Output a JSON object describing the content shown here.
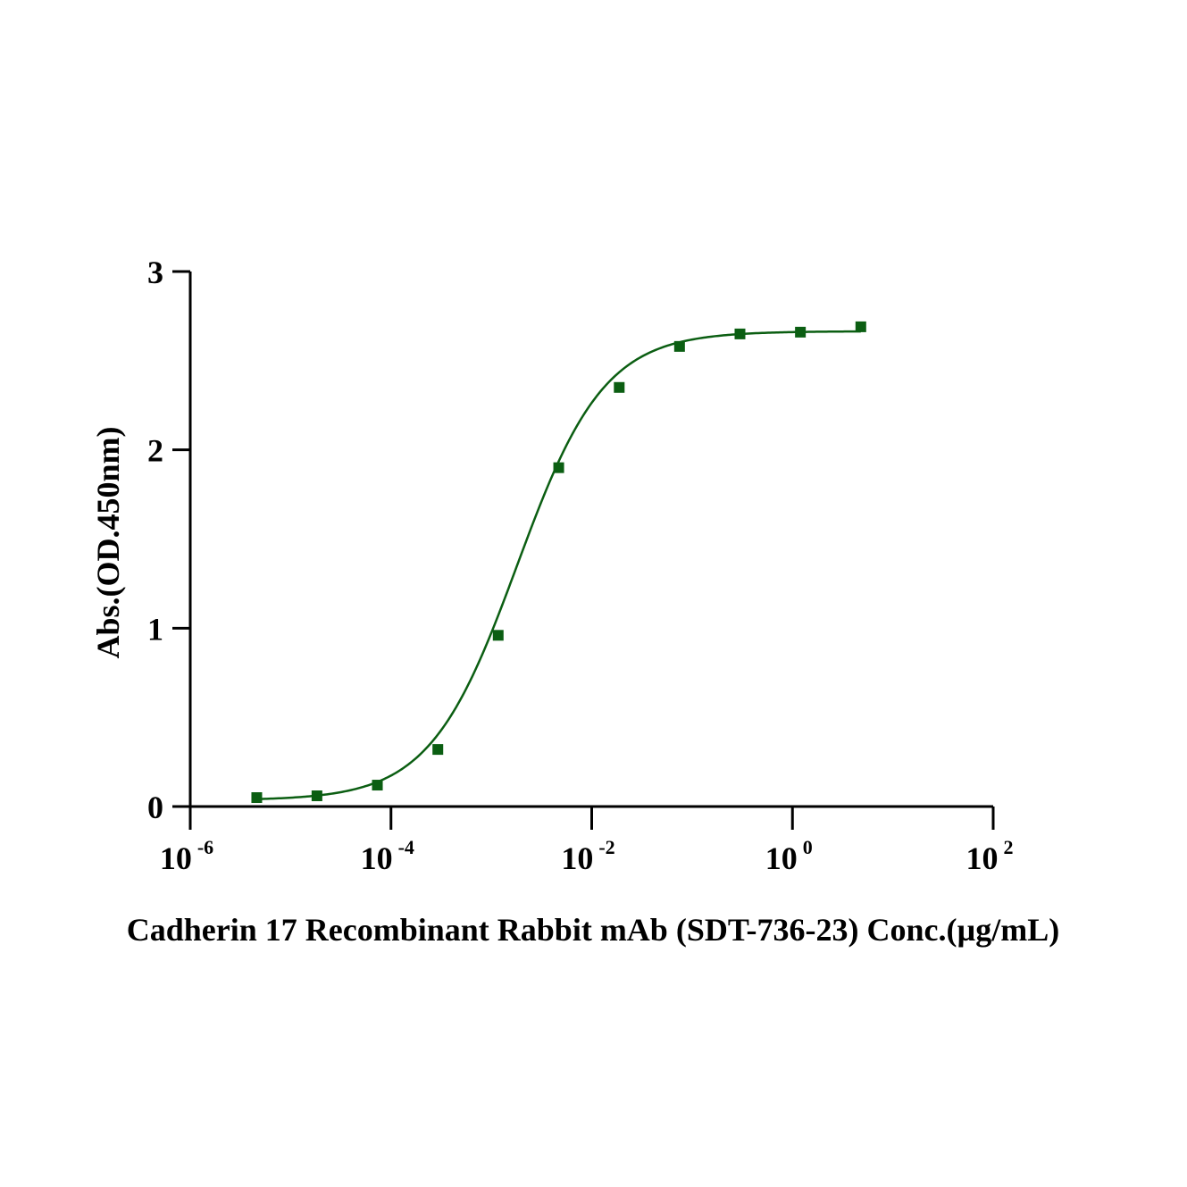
{
  "chart_data": {
    "type": "scatter",
    "xscale": "log",
    "xlabel": "Cadherin 17 Recombinant Rabbit mAb (SDT-736-23)  Conc.(µg/mL)",
    "ylabel": "Abs.(OD.450nm)",
    "xlim": [
      1e-06,
      100
    ],
    "ylim": [
      0,
      3
    ],
    "x_ticks": [
      {
        "base": "10",
        "exp": "-6"
      },
      {
        "base": "10",
        "exp": "-4"
      },
      {
        "base": "10",
        "exp": "-2"
      },
      {
        "base": "10",
        "exp": "0"
      },
      {
        "base": "10",
        "exp": "2"
      }
    ],
    "y_ticks": [
      "0",
      "1",
      "2",
      "3"
    ],
    "grid": false,
    "legend": "none",
    "color": "#0b5e12",
    "marker": "square",
    "fit": "four-parameter logistic",
    "series": [
      {
        "x": [
          4.6e-06,
          1.83e-05,
          7.32e-05,
          0.000293,
          0.00117,
          0.00469,
          0.0188,
          0.075,
          0.3,
          1.2,
          4.8
        ],
        "y": [
          0.05,
          0.06,
          0.12,
          0.32,
          0.96,
          1.9,
          2.35,
          2.58,
          2.65,
          2.66,
          2.69
        ]
      }
    ]
  }
}
